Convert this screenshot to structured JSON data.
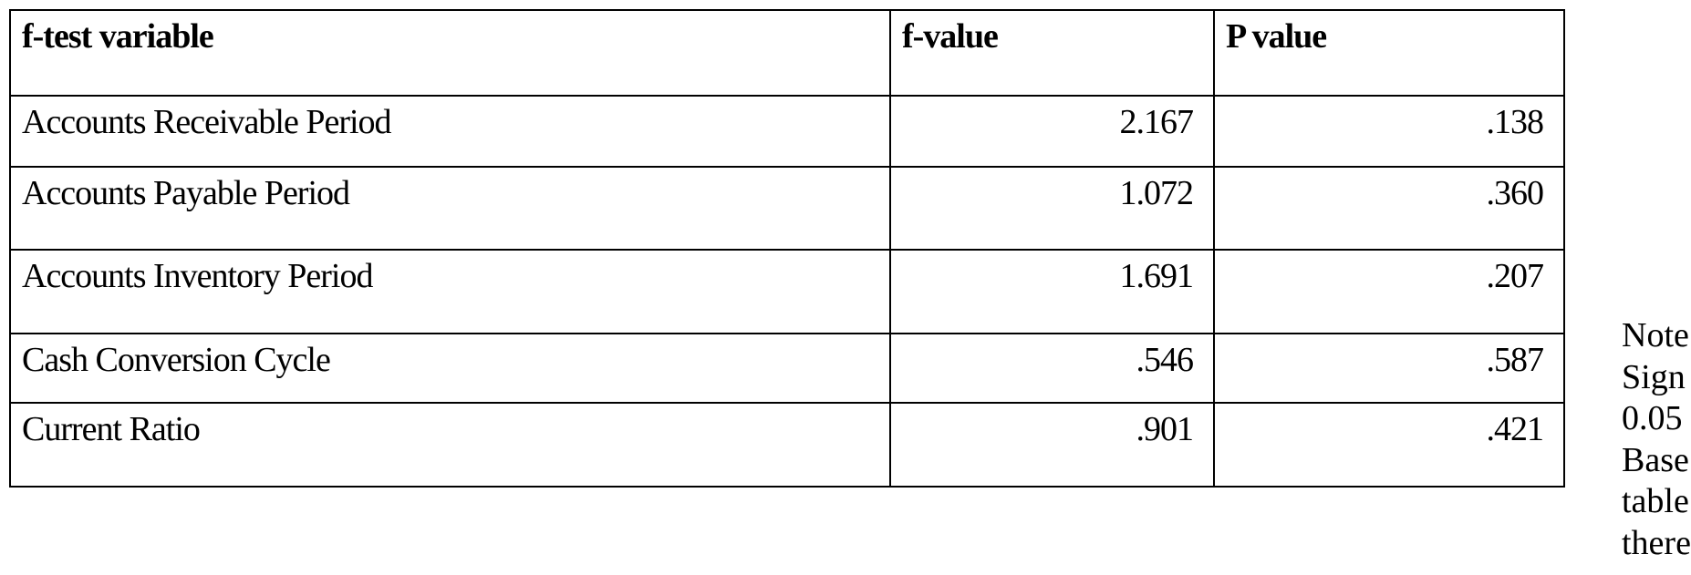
{
  "table": {
    "headers": [
      "f-test variable",
      "f-value",
      "P value"
    ],
    "rows": [
      [
        "Accounts Receivable Period",
        "2.167",
        ".138"
      ],
      [
        "Accounts Payable Period",
        "1.072",
        ".360"
      ],
      [
        "Accounts Inventory Period",
        "1.691",
        ".207"
      ],
      [
        "Cash Conversion Cycle",
        ".546",
        ".587"
      ],
      [
        "Current Ratio",
        ".901",
        ".421"
      ]
    ]
  },
  "note": {
    "lines": [
      "Note",
      "Sign",
      "0.05",
      "Base",
      "table",
      "there"
    ]
  }
}
